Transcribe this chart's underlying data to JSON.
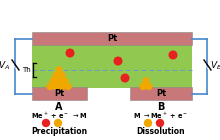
{
  "bg_color": "#ffffff",
  "top_electrode_color": "#c87878",
  "green_area_color": "#90c850",
  "bottom_electrode_color": "#c87878",
  "wire_color": "#4488cc",
  "particle_red": "#e82020",
  "particle_gold": "#f0a800",
  "dashed_line_color": "#6699cc",
  "electrode_label": "Pt",
  "Th_label": "Th",
  "label_A": "A",
  "label_B": "B",
  "label_precip": "Precipitation",
  "label_dissol": "Dissolution"
}
